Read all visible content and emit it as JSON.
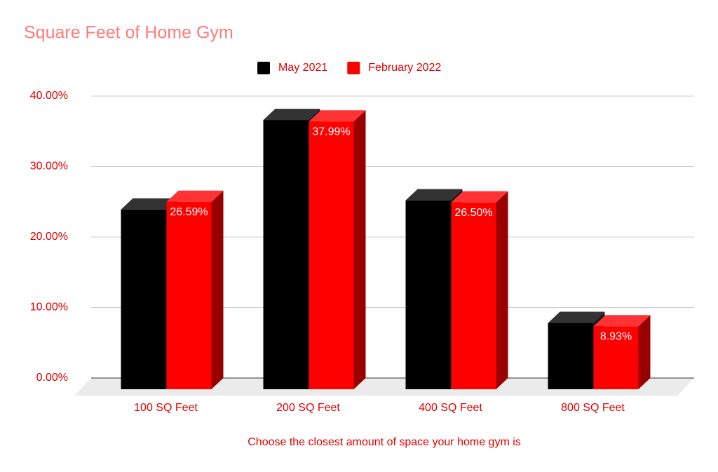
{
  "chart_data": {
    "type": "bar3d",
    "title": "Square Feet of Home Gym",
    "x_label": "Choose the closest amount of space your home gym is",
    "categories": [
      "100 SQ Feet",
      "200 SQ Feet",
      "400 SQ Feet",
      "800 SQ Feet"
    ],
    "series": [
      {
        "name": "May 2021",
        "color": "#000000",
        "values": [
          25.5,
          38.2,
          26.8,
          9.4
        ]
      },
      {
        "name": "February 2022",
        "color": "#ff0000",
        "values": [
          26.59,
          37.99,
          26.5,
          8.93
        ],
        "value_labels": [
          "26.59%",
          "37.99%",
          "26.50%",
          "8.93%"
        ]
      }
    ],
    "ylim": [
      0,
      40
    ],
    "yticks": [
      {
        "value": 0,
        "label": "0.00%"
      },
      {
        "value": 10,
        "label": "10.00%"
      },
      {
        "value": 20,
        "label": "20.00%"
      },
      {
        "value": 30,
        "label": "30.00%"
      },
      {
        "value": 40,
        "label": "40.00%"
      }
    ],
    "grid": true,
    "legend": "top"
  }
}
